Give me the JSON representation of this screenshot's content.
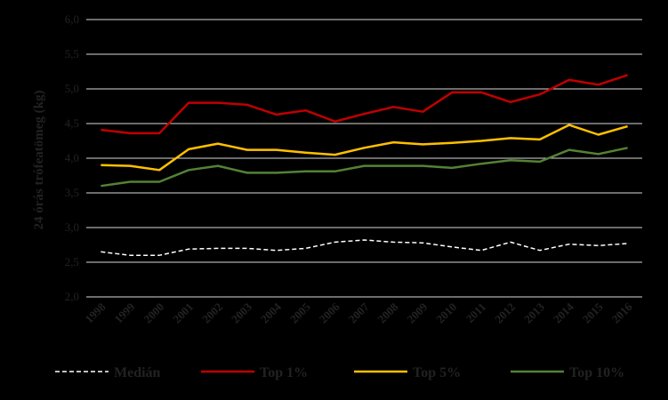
{
  "chart_data": {
    "type": "line",
    "ylabel": "24 órás trófeatömeg (kg)",
    "xlabel": "",
    "ylim": [
      2.0,
      6.0
    ],
    "yticks": [
      "2,0",
      "2,5",
      "3,0",
      "3,5",
      "4,0",
      "4,5",
      "5,0",
      "5,5",
      "6,0"
    ],
    "grid": true,
    "legend_position": "bottom",
    "x": [
      "1998",
      "1999",
      "2000",
      "2001",
      "2002",
      "2003",
      "2004",
      "2005",
      "2006",
      "2007",
      "2008",
      "2009",
      "2010",
      "2011",
      "2012",
      "2013",
      "2014",
      "2015",
      "2016"
    ],
    "series": [
      {
        "name": "Medián",
        "color": "#ffffff",
        "dashed": true,
        "values": [
          2.65,
          2.6,
          2.6,
          2.69,
          2.7,
          2.7,
          2.67,
          2.7,
          2.79,
          2.82,
          2.79,
          2.78,
          2.72,
          2.67,
          2.79,
          2.67,
          2.76,
          2.74,
          2.77
        ]
      },
      {
        "name": "Top 1%",
        "color": "#c00000",
        "dashed": false,
        "values": [
          4.41,
          4.36,
          4.36,
          4.8,
          4.8,
          4.77,
          4.63,
          4.69,
          4.53,
          4.64,
          4.74,
          4.67,
          4.95,
          4.95,
          4.81,
          4.92,
          5.13,
          5.06,
          5.2
        ]
      },
      {
        "name": "Top 5%",
        "color": "#ffc000",
        "dashed": false,
        "values": [
          3.9,
          3.89,
          3.83,
          4.13,
          4.21,
          4.12,
          4.12,
          4.08,
          4.05,
          4.15,
          4.23,
          4.2,
          4.22,
          4.25,
          4.29,
          4.27,
          4.48,
          4.34,
          4.46
        ]
      },
      {
        "name": "Top 10%",
        "color": "#548235",
        "dashed": false,
        "values": [
          3.6,
          3.66,
          3.66,
          3.83,
          3.89,
          3.79,
          3.79,
          3.81,
          3.81,
          3.89,
          3.89,
          3.89,
          3.86,
          3.92,
          3.97,
          3.95,
          4.12,
          4.06,
          4.15
        ]
      }
    ]
  }
}
